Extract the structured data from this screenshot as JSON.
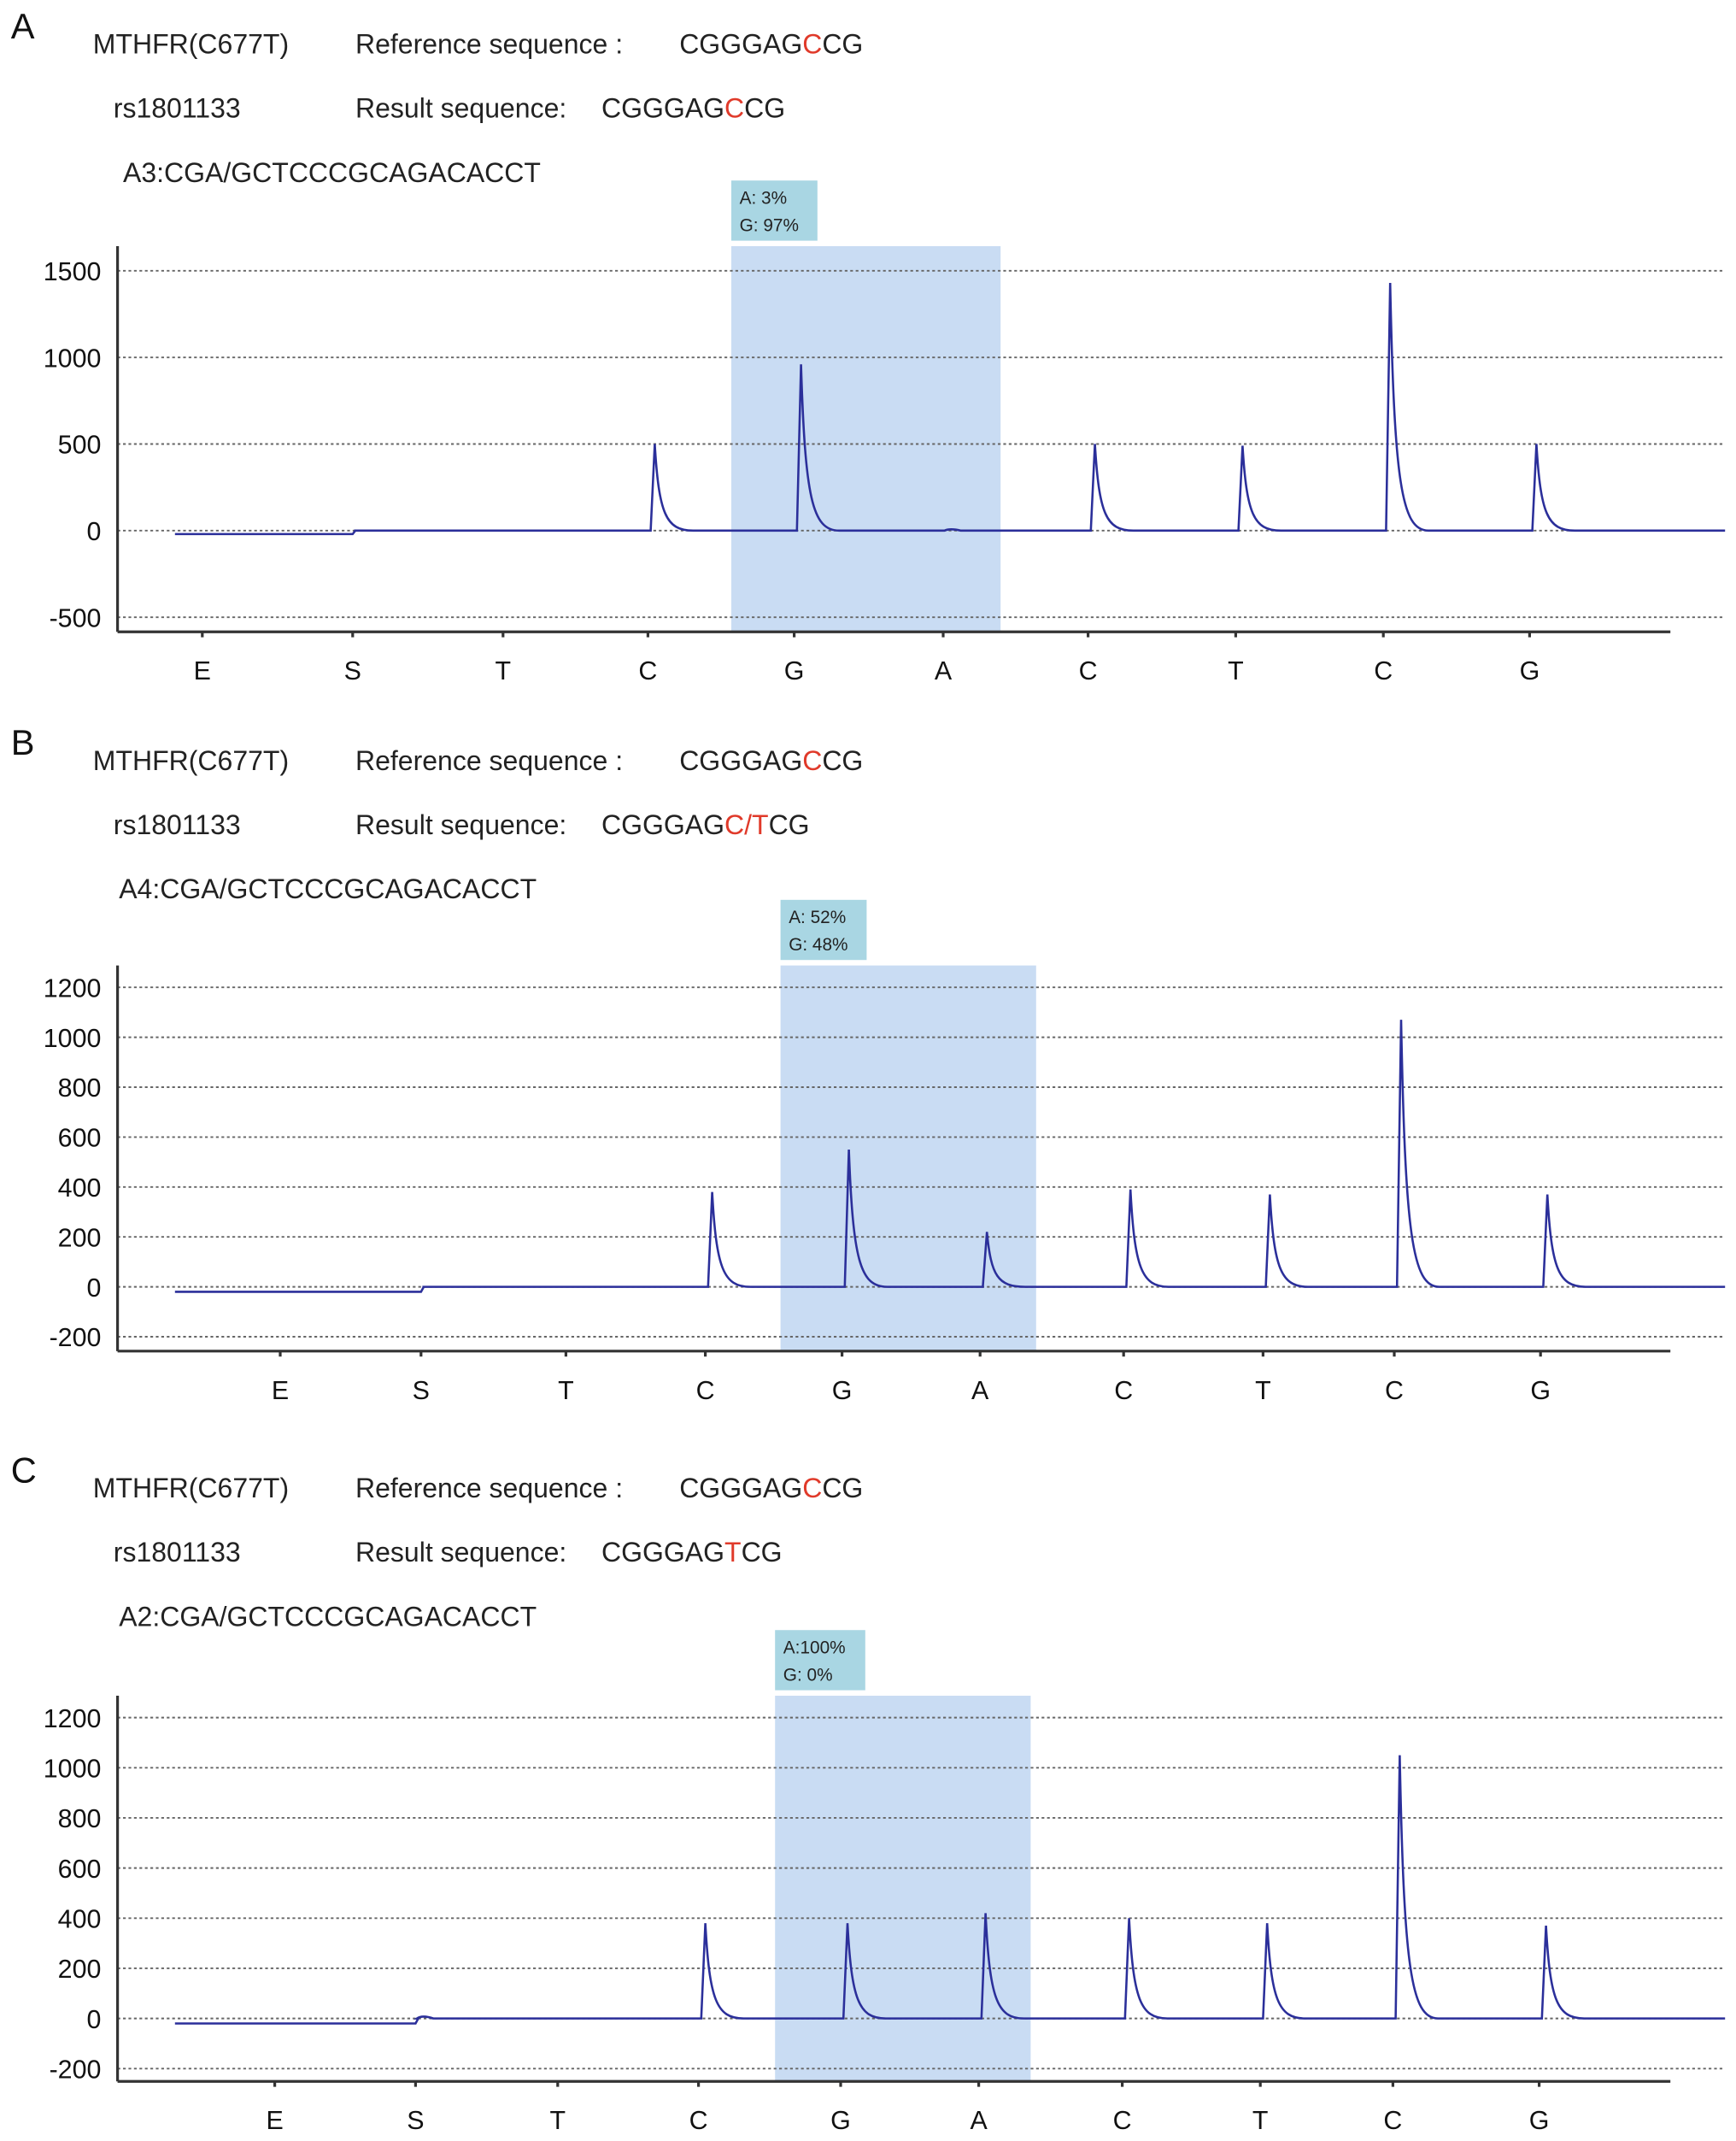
{
  "chart_data": [
    {
      "type": "line",
      "panel": "A",
      "gene": "MTHFR(C677T)",
      "snp": "rs1801133",
      "reference_label": "Reference sequence  :",
      "reference": {
        "prefix": "CGGGAG",
        "variant": "C",
        "suffix": "CG"
      },
      "result_label": "Result sequence:",
      "result": {
        "prefix": "CGGGAG",
        "variant": "C",
        "suffix": "CG"
      },
      "sample": "A3:CGA/GCTCCCGCAGACACCT",
      "annotation": [
        "A: 3%",
        "G: 97%"
      ],
      "highlight_categories": [
        4,
        5
      ],
      "categories": [
        "E",
        "S",
        "T",
        "C",
        "G",
        "A",
        "C",
        "T",
        "C",
        "G"
      ],
      "values": [
        0,
        0,
        0,
        500,
        960,
        15,
        500,
        490,
        1430,
        500
      ],
      "baseline_before_S": -20,
      "yticks": [
        1500,
        1000,
        500,
        0,
        -500
      ],
      "ylim": [
        -580,
        1640
      ],
      "grid": true,
      "colors": {
        "line": "#2b2f9a",
        "highlight": "#c9dcf3",
        "annotation_box": "#a9d6e3",
        "variant": "#e03a2a"
      }
    },
    {
      "type": "line",
      "panel": "B",
      "gene": "MTHFR(C677T)",
      "snp": "rs1801133",
      "reference_label": "Reference sequence  :",
      "reference": {
        "prefix": "CGGGAG",
        "variant": "C",
        "suffix": "CG"
      },
      "result_label": "Result sequence:",
      "result": {
        "prefix": "CGGGAG",
        "variant": "C/T",
        "suffix": "CG"
      },
      "sample": "A4:CGA/GCTCCCGCAGACACCT",
      "annotation": [
        "A: 52%",
        "G: 48%"
      ],
      "highlight_categories": [
        4,
        5
      ],
      "categories": [
        "E",
        "S",
        "T",
        "C",
        "G",
        "A",
        "C",
        "T",
        "C",
        "G"
      ],
      "values": [
        0,
        0,
        0,
        380,
        550,
        220,
        390,
        370,
        1070,
        370
      ],
      "baseline_before_S": -20,
      "yticks": [
        1200,
        1000,
        800,
        600,
        400,
        200,
        0,
        -200
      ],
      "ylim": [
        -260,
        1290
      ],
      "grid": true,
      "colors": {
        "line": "#2b2f9a",
        "highlight": "#c9dcf3",
        "annotation_box": "#a9d6e3",
        "variant": "#e03a2a"
      }
    },
    {
      "type": "line",
      "panel": "C",
      "gene": "MTHFR(C677T)",
      "snp": "rs1801133",
      "reference_label": "Reference sequence  :",
      "reference": {
        "prefix": "CGGGAG",
        "variant": "C",
        "suffix": "CG"
      },
      "result_label": "Result sequence:",
      "result": {
        "prefix": "CGGGAG",
        "variant": "T",
        "suffix": "CG"
      },
      "sample": "A2:CGA/GCTCCCGCAGACACCT",
      "annotation": [
        "A:100%",
        "G:  0%"
      ],
      "highlight_categories": [
        4,
        5
      ],
      "categories": [
        "E",
        "S",
        "T",
        "C",
        "G",
        "A",
        "C",
        "T",
        "C",
        "G"
      ],
      "values": [
        0,
        15,
        0,
        380,
        380,
        420,
        400,
        380,
        1050,
        370
      ],
      "baseline_before_S": -20,
      "yticks": [
        1200,
        1000,
        800,
        600,
        400,
        200,
        0,
        -200
      ],
      "ylim": [
        -260,
        1290
      ],
      "grid": true,
      "colors": {
        "line": "#2b2f9a",
        "highlight": "#c9dcf3",
        "annotation_box": "#a9d6e3",
        "variant": "#e03a2a"
      }
    }
  ]
}
